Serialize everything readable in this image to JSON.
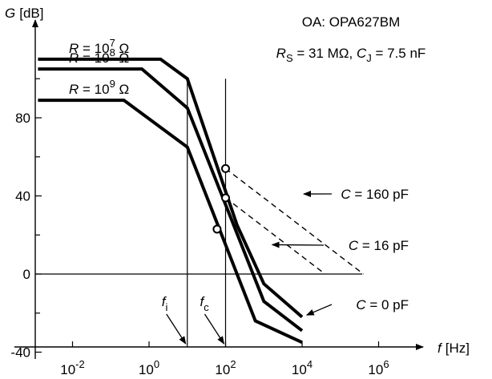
{
  "chart_data": {
    "type": "line",
    "xscale": "log",
    "xlim": [
      0.001,
      10000000
    ],
    "ylim": [
      -40,
      120
    ],
    "axes": {
      "xlabel": {
        "var": "f",
        "unit": "[Hz]"
      },
      "ylabel": {
        "var": "G",
        "unit": "[dB]"
      }
    },
    "x_ticks": [
      {
        "base": "10",
        "exp": "-2",
        "value": 0.01
      },
      {
        "base": "10",
        "exp": "0",
        "value": 1
      },
      {
        "base": "10",
        "exp": "2",
        "value": 100
      },
      {
        "base": "10",
        "exp": "4",
        "value": 10000
      },
      {
        "base": "10",
        "exp": "6",
        "value": 1000000
      }
    ],
    "y_ticks": [
      {
        "label": "80",
        "value": 80
      },
      {
        "label": "40",
        "value": 40
      },
      {
        "label": "0",
        "value": 0
      },
      {
        "label": "-40",
        "value": -40
      }
    ],
    "y_minor_ticks": [
      100,
      60,
      20,
      -20
    ],
    "annotation": {
      "line1": "OA: OPA627BM",
      "line2": {
        "r": "R",
        "r_sub": "S",
        "r_val": " = 31 MΩ, ",
        "c": "C",
        "c_sub": "J",
        "c_val": " = 7.5 nF"
      }
    },
    "series": [
      {
        "label": {
          "var": "R",
          "eq": " = 10",
          "exp": "7",
          "unit": " Ω"
        },
        "points": [
          [
            0.00125,
            110
          ],
          [
            2.0,
            110
          ],
          [
            10,
            100
          ],
          [
            200,
            25
          ],
          [
            1000,
            -5
          ],
          [
            10000,
            -22
          ]
        ]
      },
      {
        "label": {
          "var": "R",
          "eq": " = 10",
          "exp": "8",
          "unit": " Ω"
        },
        "points": [
          [
            0.00125,
            105
          ],
          [
            0.65,
            105
          ],
          [
            10,
            85
          ],
          [
            1000,
            -14
          ],
          [
            10000,
            -29
          ]
        ]
      },
      {
        "label": {
          "var": "R",
          "eq": " = 10",
          "exp": "9",
          "unit": " Ω"
        },
        "points": [
          [
            0.00125,
            89
          ],
          [
            0.22,
            89
          ],
          [
            10,
            65
          ],
          [
            600,
            -24
          ],
          [
            10000,
            -35
          ]
        ]
      }
    ],
    "dashed": [
      {
        "points": [
          [
            100,
            54
          ],
          [
            400000,
            0
          ]
        ]
      },
      {
        "points": [
          [
            100,
            39
          ],
          [
            40000,
            0
          ]
        ]
      }
    ],
    "markers": [
      [
        100,
        54
      ],
      [
        100,
        39
      ],
      [
        60,
        23
      ]
    ],
    "c_labels": [
      {
        "var": "C",
        "value": " = 160 pF",
        "arrow_to": [
          10000,
          41
        ]
      },
      {
        "var": "C",
        "value": " = 16 pF",
        "arrow_to": [
          1500,
          15
        ]
      },
      {
        "var": "C",
        "value": " = 0 pF",
        "arrow_to": [
          12000,
          -21
        ]
      }
    ],
    "vlines": [
      {
        "x": 10,
        "var": "f",
        "sub": "i"
      },
      {
        "x": 100,
        "var": "f",
        "sub": "c"
      }
    ]
  }
}
